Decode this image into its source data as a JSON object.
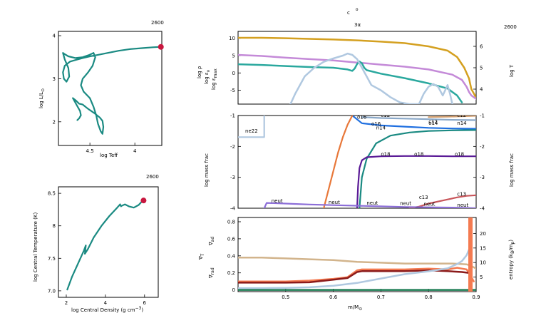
{
  "header": {
    "t_number_hr": "2600",
    "t_number_tc": "2600",
    "t_number_main": "2600",
    "main_title": "c",
    "main_title_sup": "o",
    "main_title_sub": "3α"
  },
  "chart_data": [
    {
      "type": "line",
      "id": "hr",
      "xlabel": "log Teff",
      "ylabel": "log L/L",
      "ylabel_sub": "⊙",
      "xlim": [
        4.85,
        3.7
      ],
      "ylim": [
        1.45,
        4.1
      ],
      "xticks": [
        "4.5",
        "4"
      ],
      "xtick_values": [
        4.5,
        4.0
      ],
      "yticks": [
        "2",
        "3",
        "4"
      ],
      "ytick_values": [
        2,
        3,
        4
      ],
      "series": [
        {
          "color": "#1a8a82",
          "x": [
            3.71,
            3.8,
            3.92,
            4.05,
            4.18,
            4.3,
            4.42,
            4.5,
            4.58,
            4.65,
            4.72,
            4.78,
            4.8,
            4.79,
            4.76,
            4.73,
            4.74,
            4.78,
            4.8,
            4.78,
            4.74,
            4.66,
            4.58,
            4.51,
            4.46,
            4.44,
            4.47,
            4.52,
            4.58,
            4.6,
            4.57,
            4.5,
            4.46,
            4.43,
            4.41,
            4.38,
            4.36,
            4.35,
            4.36,
            4.39,
            4.45,
            4.52,
            4.58,
            4.62,
            4.66,
            4.69,
            4.65,
            4.61,
            4.6,
            4.62,
            4.64
          ],
          "y": [
            3.74,
            3.73,
            3.71,
            3.69,
            3.65,
            3.6,
            3.55,
            3.52,
            3.48,
            3.44,
            3.4,
            3.3,
            3.15,
            3.0,
            2.93,
            3.05,
            3.25,
            3.45,
            3.6,
            3.57,
            3.52,
            3.48,
            3.5,
            3.55,
            3.6,
            3.5,
            3.3,
            3.15,
            3.0,
            2.85,
            2.7,
            2.55,
            2.35,
            2.15,
            1.95,
            1.78,
            1.72,
            1.88,
            2.02,
            2.1,
            2.2,
            2.3,
            2.4,
            2.42,
            2.5,
            2.55,
            2.4,
            2.25,
            2.15,
            2.08,
            2.04
          ]
        }
      ],
      "end_marker": {
        "x": 3.71,
        "y": 3.74,
        "color": "#c8173f"
      }
    },
    {
      "type": "line",
      "id": "tc",
      "xlabel": "log Central Density (g cm",
      "xlabel_sup": "−3",
      "xlabel_end": ")",
      "ylabel": "log Central Temperature (K)",
      "xlim": [
        1.6,
        6.7
      ],
      "ylim": [
        6.9,
        8.6
      ],
      "xticks": [
        "2",
        "4",
        "6"
      ],
      "xtick_values": [
        2,
        4,
        6
      ],
      "yticks": [
        "7.0",
        "7.5",
        "8",
        "8.5"
      ],
      "ytick_values": [
        7.0,
        7.5,
        8.0,
        8.5
      ],
      "series": [
        {
          "color": "#1a8a82",
          "x": [
            2.05,
            2.3,
            2.6,
            2.9,
            3.0,
            2.95,
            3.1,
            3.4,
            3.8,
            4.2,
            4.6,
            4.75,
            4.8,
            4.85,
            5.0,
            5.2,
            5.45,
            5.7,
            5.85,
            5.95
          ],
          "y": [
            7.02,
            7.22,
            7.42,
            7.62,
            7.7,
            7.57,
            7.64,
            7.82,
            8.0,
            8.15,
            8.28,
            8.33,
            8.3,
            8.31,
            8.33,
            8.3,
            8.28,
            8.32,
            8.37,
            8.39
          ]
        }
      ],
      "end_marker": {
        "x": 5.95,
        "y": 8.39,
        "color": "#c8173f"
      }
    },
    {
      "type": "line",
      "id": "profile",
      "ylabel_left_parts": [
        "log ρ",
        "log ε",
        "log ε"
      ],
      "ylabel_left_subs": [
        "",
        "ν",
        "max"
      ],
      "ylabel_right": "log T",
      "xlim": [
        0.4,
        0.9
      ],
      "ylim_left": [
        -9,
        12
      ],
      "yticks_left": [
        "10",
        "5",
        "0",
        "-5"
      ],
      "ytick_left_values": [
        10,
        5,
        0,
        -5
      ],
      "ylim_right": [
        3.3,
        6.7
      ],
      "yticks_right": [
        "6",
        "5",
        "4"
      ],
      "ytick_right_values": [
        6,
        5,
        4
      ],
      "series": [
        {
          "name": "log T",
          "axis": "right",
          "color": "#d4a020",
          "x": [
            0.4,
            0.45,
            0.5,
            0.55,
            0.6,
            0.65,
            0.7,
            0.75,
            0.8,
            0.84,
            0.86,
            0.875,
            0.885,
            0.89,
            0.895,
            0.9
          ],
          "y": [
            6.4,
            6.4,
            6.38,
            6.35,
            6.32,
            6.28,
            6.22,
            6.15,
            6.0,
            5.8,
            5.5,
            5.0,
            4.5,
            4.0,
            3.8,
            3.6
          ]
        },
        {
          "name": "log ρ",
          "axis": "left",
          "color": "#c48ad8",
          "x": [
            0.4,
            0.45,
            0.5,
            0.55,
            0.6,
            0.65,
            0.7,
            0.75,
            0.8,
            0.85,
            0.87,
            0.88,
            0.885,
            0.89,
            0.9
          ],
          "y": [
            5.2,
            4.9,
            4.4,
            4.0,
            3.6,
            3.0,
            2.4,
            1.8,
            1.0,
            -0.5,
            -2.0,
            -4.0,
            -5.5,
            -6.5,
            -7.5
          ]
        },
        {
          "name": "log ε_ν",
          "axis": "left",
          "color": "#2aa89e",
          "x": [
            0.4,
            0.45,
            0.5,
            0.55,
            0.6,
            0.63,
            0.64,
            0.645,
            0.65,
            0.655,
            0.66,
            0.665,
            0.67,
            0.7,
            0.75,
            0.8,
            0.84,
            0.86,
            0.87
          ],
          "y": [
            2.5,
            2.3,
            2.0,
            1.7,
            1.5,
            1.0,
            0.6,
            1.3,
            2.6,
            3.3,
            2.8,
            1.5,
            0.8,
            -0.2,
            -1.5,
            -3.0,
            -4.5,
            -6.5,
            -8.5
          ]
        },
        {
          "name": "log ε_max",
          "axis": "left",
          "color": "#b0c8e0",
          "x": [
            0.51,
            0.52,
            0.54,
            0.56,
            0.58,
            0.6,
            0.62,
            0.63,
            0.64,
            0.65,
            0.66,
            0.67,
            0.68,
            0.7,
            0.72,
            0.74,
            0.76,
            0.78,
            0.79,
            0.8,
            0.81,
            0.82,
            0.83,
            0.84,
            0.845,
            0.85
          ],
          "y": [
            -9.0,
            -6.0,
            -1.0,
            1.5,
            3.2,
            4.2,
            5.0,
            5.6,
            5.2,
            4.0,
            1.5,
            -1.0,
            -3.5,
            -5.0,
            -7.0,
            -8.5,
            -9.0,
            -9.0,
            -6.0,
            -4.0,
            -3.2,
            -4.0,
            -6.5,
            -3.5,
            -6.0,
            -9.0
          ]
        }
      ]
    },
    {
      "type": "line",
      "id": "abundance",
      "ylabel": "log mass frac",
      "ylabel_right": "log mass frac",
      "xlim": [
        0.4,
        0.9
      ],
      "ylim": [
        -4,
        -1
      ],
      "yticks": [
        "-1",
        "-2",
        "-3",
        "-4"
      ],
      "ytick_values": [
        -1,
        -2,
        -3,
        -4
      ],
      "series": [
        {
          "name": "ne22",
          "color": "#b0c8e0",
          "x": [
            0.4,
            0.42,
            0.44,
            0.45,
            0.455,
            0.455
          ],
          "y": [
            -1.7,
            -1.7,
            -1.7,
            -1.7,
            -1.7,
            -1.0
          ]
        },
        {
          "name": "o16",
          "color": "#1f6fe0",
          "x": [
            0.64,
            0.66,
            0.7,
            0.75,
            0.8,
            0.85,
            0.9
          ],
          "y": [
            -1.0,
            -1.25,
            -1.32,
            -1.36,
            -1.4,
            -1.42,
            -1.43
          ]
        },
        {
          "name": "c12",
          "color": "#8aa8c8",
          "x": [
            0.66,
            0.7,
            0.75,
            0.8,
            0.85,
            0.9
          ],
          "y": [
            -1.05,
            -1.08,
            -1.1,
            -1.12,
            -1.14,
            -1.15
          ]
        },
        {
          "name": "n14",
          "color": "#1a8a82",
          "x": [
            0.655,
            0.66,
            0.67,
            0.69,
            0.72,
            0.76,
            0.8,
            0.85,
            0.9
          ],
          "y": [
            -4.0,
            -3.0,
            -2.4,
            -1.9,
            -1.65,
            -1.55,
            -1.5,
            -1.48,
            -1.47
          ]
        },
        {
          "name": "he4",
          "color": "#e8783a",
          "x": [
            0.58,
            0.59,
            0.6,
            0.61,
            0.62,
            0.63,
            0.64
          ],
          "y": [
            -4.0,
            -3.4,
            -2.8,
            -2.2,
            -1.7,
            -1.3,
            -1.0
          ]
        },
        {
          "name": "o18",
          "color": "#5a1a96",
          "x": [
            0.65,
            0.652,
            0.655,
            0.66,
            0.67,
            0.7,
            0.75,
            0.8,
            0.85,
            0.9
          ],
          "y": [
            -4.0,
            -3.3,
            -2.7,
            -2.45,
            -2.35,
            -2.32,
            -2.31,
            -2.31,
            -2.32,
            -2.32
          ]
        },
        {
          "name": "c13",
          "color": "#c8555a",
          "x": [
            0.76,
            0.78,
            0.8,
            0.83,
            0.86,
            0.88,
            0.9
          ],
          "y": [
            -4.0,
            -3.95,
            -3.85,
            -3.75,
            -3.65,
            -3.6,
            -3.58
          ]
        },
        {
          "name": "neut",
          "color": "#8c6ed8",
          "x": [
            0.455,
            0.46,
            0.5,
            0.55,
            0.6,
            0.65,
            0.7,
            0.75,
            0.8,
            0.85,
            0.9
          ],
          "y": [
            -4.0,
            -3.83,
            -3.85,
            -3.88,
            -3.9,
            -3.92,
            -3.94,
            -3.96,
            -3.97,
            -3.98,
            -4.0
          ]
        },
        {
          "name": "c12 surf",
          "color": "#d4a070",
          "x": [
            0.8,
            0.84,
            0.86,
            0.88,
            0.9
          ],
          "y": [
            -1.05,
            -1.04,
            -1.03,
            -1.02,
            -1.01
          ]
        }
      ],
      "labels": [
        {
          "text": "ne22",
          "x": 0.415,
          "y": -1.55,
          "color": "#8aa8c8"
        },
        {
          "text": "o16",
          "x": 0.65,
          "y": -1.1,
          "color": "#1f6fe0"
        },
        {
          "text": "o16",
          "x": 0.68,
          "y": -1.32,
          "color": "#1f6fe0"
        },
        {
          "text": "c12",
          "x": 0.7,
          "y": -1.05,
          "color": "#8aa8c8"
        },
        {
          "text": "n14",
          "x": 0.69,
          "y": -1.45,
          "color": "#1a8a82"
        },
        {
          "text": "c12",
          "x": 0.8,
          "y": -1.25,
          "color": "#8aa8c8"
        },
        {
          "text": "o14",
          "x": 0.8,
          "y": -1.3,
          "color": "#8aa8c8"
        },
        {
          "text": "n14",
          "x": 0.86,
          "y": -1.3,
          "color": "#1a8a82"
        },
        {
          "text": "c12",
          "x": 0.86,
          "y": -1.05,
          "color": "#d4a070"
        },
        {
          "text": "o18",
          "x": 0.7,
          "y": -2.3,
          "color": "#5a1a96"
        },
        {
          "text": "o18",
          "x": 0.77,
          "y": -2.3,
          "color": "#5a1a96"
        },
        {
          "text": "o18",
          "x": 0.855,
          "y": -2.3,
          "color": "#5a1a96"
        },
        {
          "text": "neut",
          "x": 0.47,
          "y": -3.82,
          "color": "#8c6ed8"
        },
        {
          "text": "neut",
          "x": 0.59,
          "y": -3.86,
          "color": "#8c6ed8"
        },
        {
          "text": "neut",
          "x": 0.67,
          "y": -3.88,
          "color": "#8c6ed8"
        },
        {
          "text": "neut",
          "x": 0.74,
          "y": -3.9,
          "color": "#8c6ed8"
        },
        {
          "text": "neut",
          "x": 0.79,
          "y": -3.92,
          "color": "#8c6ed8"
        },
        {
          "text": "neut",
          "x": 0.86,
          "y": -3.95,
          "color": "#8c6ed8"
        },
        {
          "text": "c13",
          "x": 0.78,
          "y": -3.7,
          "color": "#c8555a"
        },
        {
          "text": "c13",
          "x": 0.86,
          "y": -3.6,
          "color": "#c8555a"
        }
      ]
    },
    {
      "type": "line",
      "id": "gradients",
      "xlabel": "m/M",
      "xlabel_sub": "⊙",
      "ylabel_left_parts": [
        "∇",
        "∇",
        "∇"
      ],
      "ylabel_left_subs": [
        "ad",
        "T",
        "rad"
      ],
      "ylabel_right": "entropy (k",
      "ylabel_right_sub": "B",
      "ylabel_right_mid": "/m",
      "ylabel_right_sub2": "p",
      "ylabel_right_end": ")",
      "xlim": [
        0.4,
        0.9
      ],
      "xticks": [
        "0.5",
        "0.6",
        "0.7",
        "0.8",
        "0.9"
      ],
      "xtick_values": [
        0.5,
        0.6,
        0.7,
        0.8,
        0.9
      ],
      "ylim_left": [
        -0.02,
        0.85
      ],
      "yticks_left": [
        "0.8",
        "0.6",
        "0.4",
        "0.2",
        "0"
      ],
      "ytick_left_values": [
        0.8,
        0.6,
        0.4,
        0.2,
        0.0
      ],
      "ylim_right": [
        0,
        25.5
      ],
      "yticks_right": [
        "20",
        "15",
        "10",
        "5"
      ],
      "ytick_right_values": [
        20,
        15,
        10,
        5
      ],
      "series": [
        {
          "name": "∇_ad",
          "axis": "left",
          "color": "#d2b48c",
          "x": [
            0.4,
            0.45,
            0.5,
            0.55,
            0.6,
            0.65,
            0.7,
            0.75,
            0.8,
            0.85,
            0.88,
            0.89,
            0.9
          ],
          "y": [
            0.38,
            0.38,
            0.37,
            0.36,
            0.35,
            0.33,
            0.32,
            0.31,
            0.31,
            0.31,
            0.3,
            0.28,
            0.25
          ]
        },
        {
          "name": "∇_rad",
          "axis": "left",
          "color": "#f47a50",
          "x": [
            0.4,
            0.45,
            0.5,
            0.55,
            0.6,
            0.63,
            0.64,
            0.65,
            0.66,
            0.67,
            0.7,
            0.75,
            0.8,
            0.84,
            0.86,
            0.87,
            0.88,
            0.885,
            0.89,
            0.895
          ],
          "y": [
            0.1,
            0.1,
            0.1,
            0.11,
            0.13,
            0.15,
            0.19,
            0.23,
            0.24,
            0.24,
            0.24,
            0.24,
            0.25,
            0.24,
            0.26,
            0.25,
            0.24,
            0.2,
            0.15,
            0.1
          ]
        },
        {
          "name": "∇_T",
          "axis": "left",
          "color": "#8b1a1a",
          "x": [
            0.4,
            0.45,
            0.5,
            0.55,
            0.6,
            0.63,
            0.65,
            0.66,
            0.7,
            0.75,
            0.8,
            0.84,
            0.87,
            0.885,
            0.89
          ],
          "y": [
            0.085,
            0.085,
            0.085,
            0.09,
            0.12,
            0.14,
            0.21,
            0.22,
            0.22,
            0.22,
            0.23,
            0.22,
            0.21,
            0.2,
            0.15
          ]
        },
        {
          "name": "entropy",
          "axis": "right",
          "color": "#b0c8e0",
          "x": [
            0.4,
            0.45,
            0.5,
            0.55,
            0.6,
            0.65,
            0.7,
            0.75,
            0.8,
            0.84,
            0.86,
            0.87,
            0.88,
            0.885,
            0.89
          ],
          "y": [
            1.2,
            1.2,
            1.3,
            1.5,
            2.0,
            3.0,
            4.5,
            6.0,
            7.0,
            8.0,
            9.5,
            10.5,
            12.5,
            14.5,
            16.0
          ]
        },
        {
          "name": "green",
          "axis": "left",
          "color": "#1a7a50",
          "x": [
            0.4,
            0.9
          ],
          "y": [
            0.0,
            0.0
          ]
        }
      ],
      "spike": {
        "x": 0.888,
        "color": "#f47a50"
      }
    }
  ]
}
